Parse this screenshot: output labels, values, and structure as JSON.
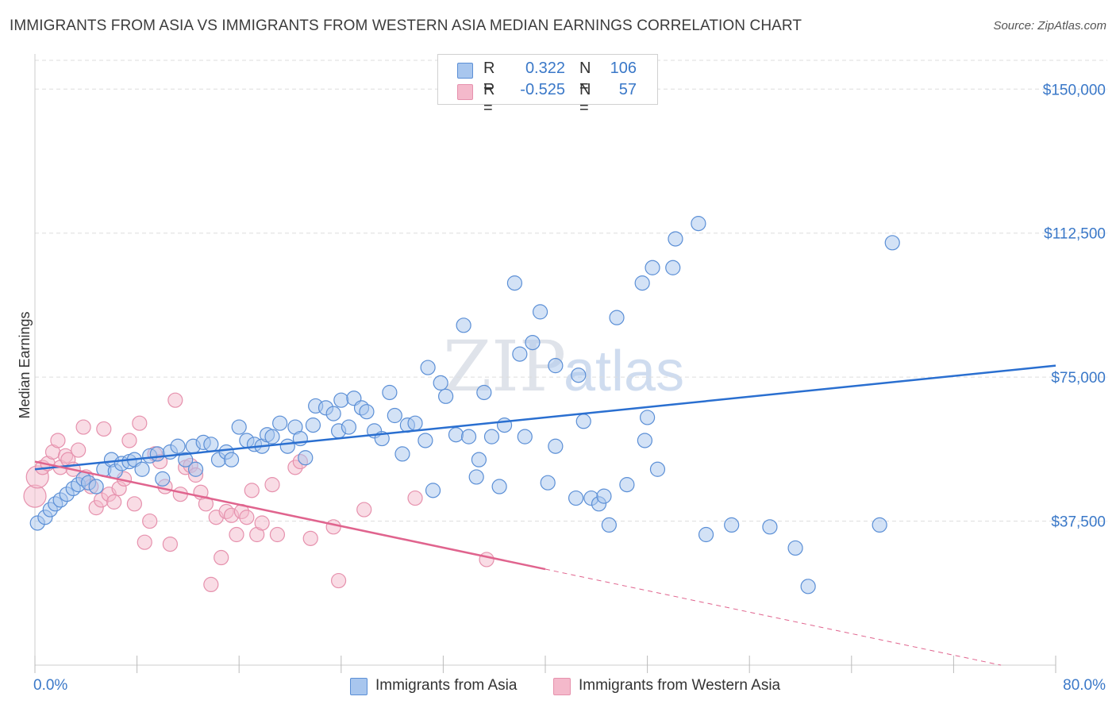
{
  "header": {
    "title": "IMMIGRANTS FROM ASIA VS IMMIGRANTS FROM WESTERN ASIA MEDIAN EARNINGS CORRELATION CHART",
    "source": "Source: ZipAtlas.com"
  },
  "legend": {
    "rows": [
      {
        "r_label": "R =",
        "r_value": "0.322",
        "n_label": "N =",
        "n_value": "106"
      },
      {
        "r_label": "R =",
        "r_value": "-0.525",
        "n_label": "N =",
        "n_value": "57"
      }
    ],
    "bottom": [
      "Immigrants from Asia",
      "Immigrants from Western Asia"
    ]
  },
  "watermark": {
    "zip": "ZIP",
    "atlas": "atlas"
  },
  "colors": {
    "blue_fill": "#a8c6ee",
    "blue_stroke": "#5b8fd6",
    "blue_line": "#2a6fd0",
    "pink_fill": "#f4b9cb",
    "pink_stroke": "#e691ad",
    "pink_line": "#e0648e",
    "axis_text": "#3a78c8",
    "grid": "#dddddd"
  },
  "chart_data": {
    "type": "scatter",
    "xlabel": "",
    "ylabel": "Median Earnings",
    "xlim": [
      0,
      80
    ],
    "ylim": [
      0,
      157500
    ],
    "x_tick_labels": [
      "0.0%",
      "80.0%"
    ],
    "y_ticks": [
      37500,
      75000,
      112500,
      150000
    ],
    "y_tick_labels": [
      "$37,500",
      "$75,000",
      "$112,500",
      "$150,000"
    ],
    "grid": true,
    "legend_position": "top-center",
    "series": [
      {
        "name": "Immigrants from Asia",
        "color": "blue",
        "trend": {
          "x": [
            0,
            80
          ],
          "y": [
            51000,
            78000
          ],
          "style": "solid"
        },
        "points": [
          [
            0.2,
            37000
          ],
          [
            0.8,
            38500
          ],
          [
            1.2,
            40500
          ],
          [
            1.6,
            42000
          ],
          [
            2.0,
            43000
          ],
          [
            2.5,
            44500
          ],
          [
            3.0,
            46000
          ],
          [
            3.4,
            47000
          ],
          [
            3.8,
            48500
          ],
          [
            4.2,
            47500
          ],
          [
            4.8,
            46500
          ],
          [
            5.4,
            51000
          ],
          [
            6.0,
            53500
          ],
          [
            6.3,
            50500
          ],
          [
            6.8,
            52500
          ],
          [
            7.4,
            53000
          ],
          [
            7.8,
            53500
          ],
          [
            8.4,
            51000
          ],
          [
            9.0,
            54500
          ],
          [
            9.6,
            55000
          ],
          [
            10.0,
            48500
          ],
          [
            10.6,
            55500
          ],
          [
            11.2,
            57000
          ],
          [
            11.8,
            53500
          ],
          [
            12.4,
            57000
          ],
          [
            12.6,
            51000
          ],
          [
            13.2,
            58000
          ],
          [
            13.8,
            57500
          ],
          [
            14.4,
            53500
          ],
          [
            15.0,
            55500
          ],
          [
            15.4,
            53500
          ],
          [
            16.0,
            62000
          ],
          [
            16.6,
            58500
          ],
          [
            17.2,
            57500
          ],
          [
            17.8,
            57000
          ],
          [
            18.2,
            60000
          ],
          [
            18.6,
            59500
          ],
          [
            19.2,
            63000
          ],
          [
            19.8,
            57000
          ],
          [
            20.4,
            62000
          ],
          [
            20.8,
            59000
          ],
          [
            21.2,
            54000
          ],
          [
            21.8,
            62500
          ],
          [
            22.0,
            67500
          ],
          [
            22.8,
            67000
          ],
          [
            23.4,
            65500
          ],
          [
            23.8,
            61000
          ],
          [
            24.0,
            69000
          ],
          [
            24.6,
            62000
          ],
          [
            25.0,
            69500
          ],
          [
            25.6,
            67000
          ],
          [
            26.0,
            66000
          ],
          [
            26.6,
            61000
          ],
          [
            27.2,
            59000
          ],
          [
            27.8,
            71000
          ],
          [
            28.2,
            65000
          ],
          [
            28.8,
            55000
          ],
          [
            29.2,
            62500
          ],
          [
            29.8,
            63000
          ],
          [
            30.6,
            58500
          ],
          [
            31.2,
            45500
          ],
          [
            30.8,
            77500
          ],
          [
            31.8,
            73500
          ],
          [
            32.2,
            70000
          ],
          [
            33.0,
            60000
          ],
          [
            33.6,
            88500
          ],
          [
            34.0,
            59500
          ],
          [
            34.6,
            49000
          ],
          [
            34.8,
            53500
          ],
          [
            35.2,
            71000
          ],
          [
            35.8,
            59500
          ],
          [
            36.4,
            46500
          ],
          [
            36.8,
            62500
          ],
          [
            37.6,
            99500
          ],
          [
            38.0,
            81000
          ],
          [
            38.4,
            59500
          ],
          [
            39.0,
            84000
          ],
          [
            39.6,
            92000
          ],
          [
            40.2,
            47500
          ],
          [
            40.8,
            78000
          ],
          [
            40.8,
            57000
          ],
          [
            42.4,
            43500
          ],
          [
            42.6,
            75500
          ],
          [
            43.0,
            63500
          ],
          [
            43.6,
            43500
          ],
          [
            44.2,
            42000
          ],
          [
            45.0,
            36500
          ],
          [
            44.6,
            44000
          ],
          [
            45.6,
            90500
          ],
          [
            46.4,
            47000
          ],
          [
            47.6,
            99500
          ],
          [
            47.8,
            58500
          ],
          [
            48.0,
            64500
          ],
          [
            48.4,
            103500
          ],
          [
            48.8,
            51000
          ],
          [
            50.0,
            103500
          ],
          [
            50.2,
            111000
          ],
          [
            52.0,
            115000
          ],
          [
            52.6,
            34000
          ],
          [
            54.6,
            36500
          ],
          [
            57.6,
            36000
          ],
          [
            59.6,
            30500
          ],
          [
            60.6,
            20500
          ],
          [
            66.2,
            36500
          ],
          [
            67.2,
            110000
          ]
        ]
      },
      {
        "name": "Immigrants from Western Asia",
        "color": "pink",
        "trend": {
          "x": [
            0,
            40
          ],
          "y": [
            53000,
            25000
          ],
          "style": "solid",
          "extended_to": [
            80,
            -3000
          ]
        },
        "points": [
          [
            0.0,
            44000
          ],
          [
            0.2,
            49000
          ],
          [
            0.6,
            51500
          ],
          [
            1.0,
            52500
          ],
          [
            1.4,
            55500
          ],
          [
            1.8,
            58500
          ],
          [
            2.0,
            51500
          ],
          [
            2.4,
            54500
          ],
          [
            2.6,
            53500
          ],
          [
            3.0,
            51000
          ],
          [
            3.4,
            56000
          ],
          [
            3.8,
            62000
          ],
          [
            4.0,
            49000
          ],
          [
            4.4,
            46500
          ],
          [
            4.8,
            41000
          ],
          [
            5.2,
            43000
          ],
          [
            5.4,
            61500
          ],
          [
            5.8,
            44500
          ],
          [
            6.2,
            42500
          ],
          [
            6.6,
            46000
          ],
          [
            7.0,
            48500
          ],
          [
            7.4,
            58500
          ],
          [
            7.8,
            42000
          ],
          [
            8.2,
            63000
          ],
          [
            8.6,
            32000
          ],
          [
            9.0,
            37500
          ],
          [
            9.4,
            55000
          ],
          [
            9.8,
            53000
          ],
          [
            10.2,
            46500
          ],
          [
            10.6,
            31500
          ],
          [
            11.0,
            69000
          ],
          [
            11.4,
            44500
          ],
          [
            11.8,
            51500
          ],
          [
            12.2,
            52000
          ],
          [
            12.6,
            49500
          ],
          [
            13.0,
            45000
          ],
          [
            13.4,
            42000
          ],
          [
            13.8,
            21000
          ],
          [
            14.2,
            38500
          ],
          [
            14.6,
            28000
          ],
          [
            15.0,
            40000
          ],
          [
            15.4,
            39000
          ],
          [
            15.8,
            34000
          ],
          [
            16.2,
            40000
          ],
          [
            16.6,
            38500
          ],
          [
            17.0,
            45500
          ],
          [
            17.4,
            34000
          ],
          [
            17.8,
            37000
          ],
          [
            18.6,
            47000
          ],
          [
            19.0,
            34000
          ],
          [
            20.4,
            51500
          ],
          [
            20.8,
            53000
          ],
          [
            21.6,
            33000
          ],
          [
            23.4,
            36000
          ],
          [
            23.8,
            22000
          ],
          [
            25.8,
            40500
          ],
          [
            29.8,
            43500
          ],
          [
            35.4,
            27500
          ]
        ]
      }
    ]
  }
}
